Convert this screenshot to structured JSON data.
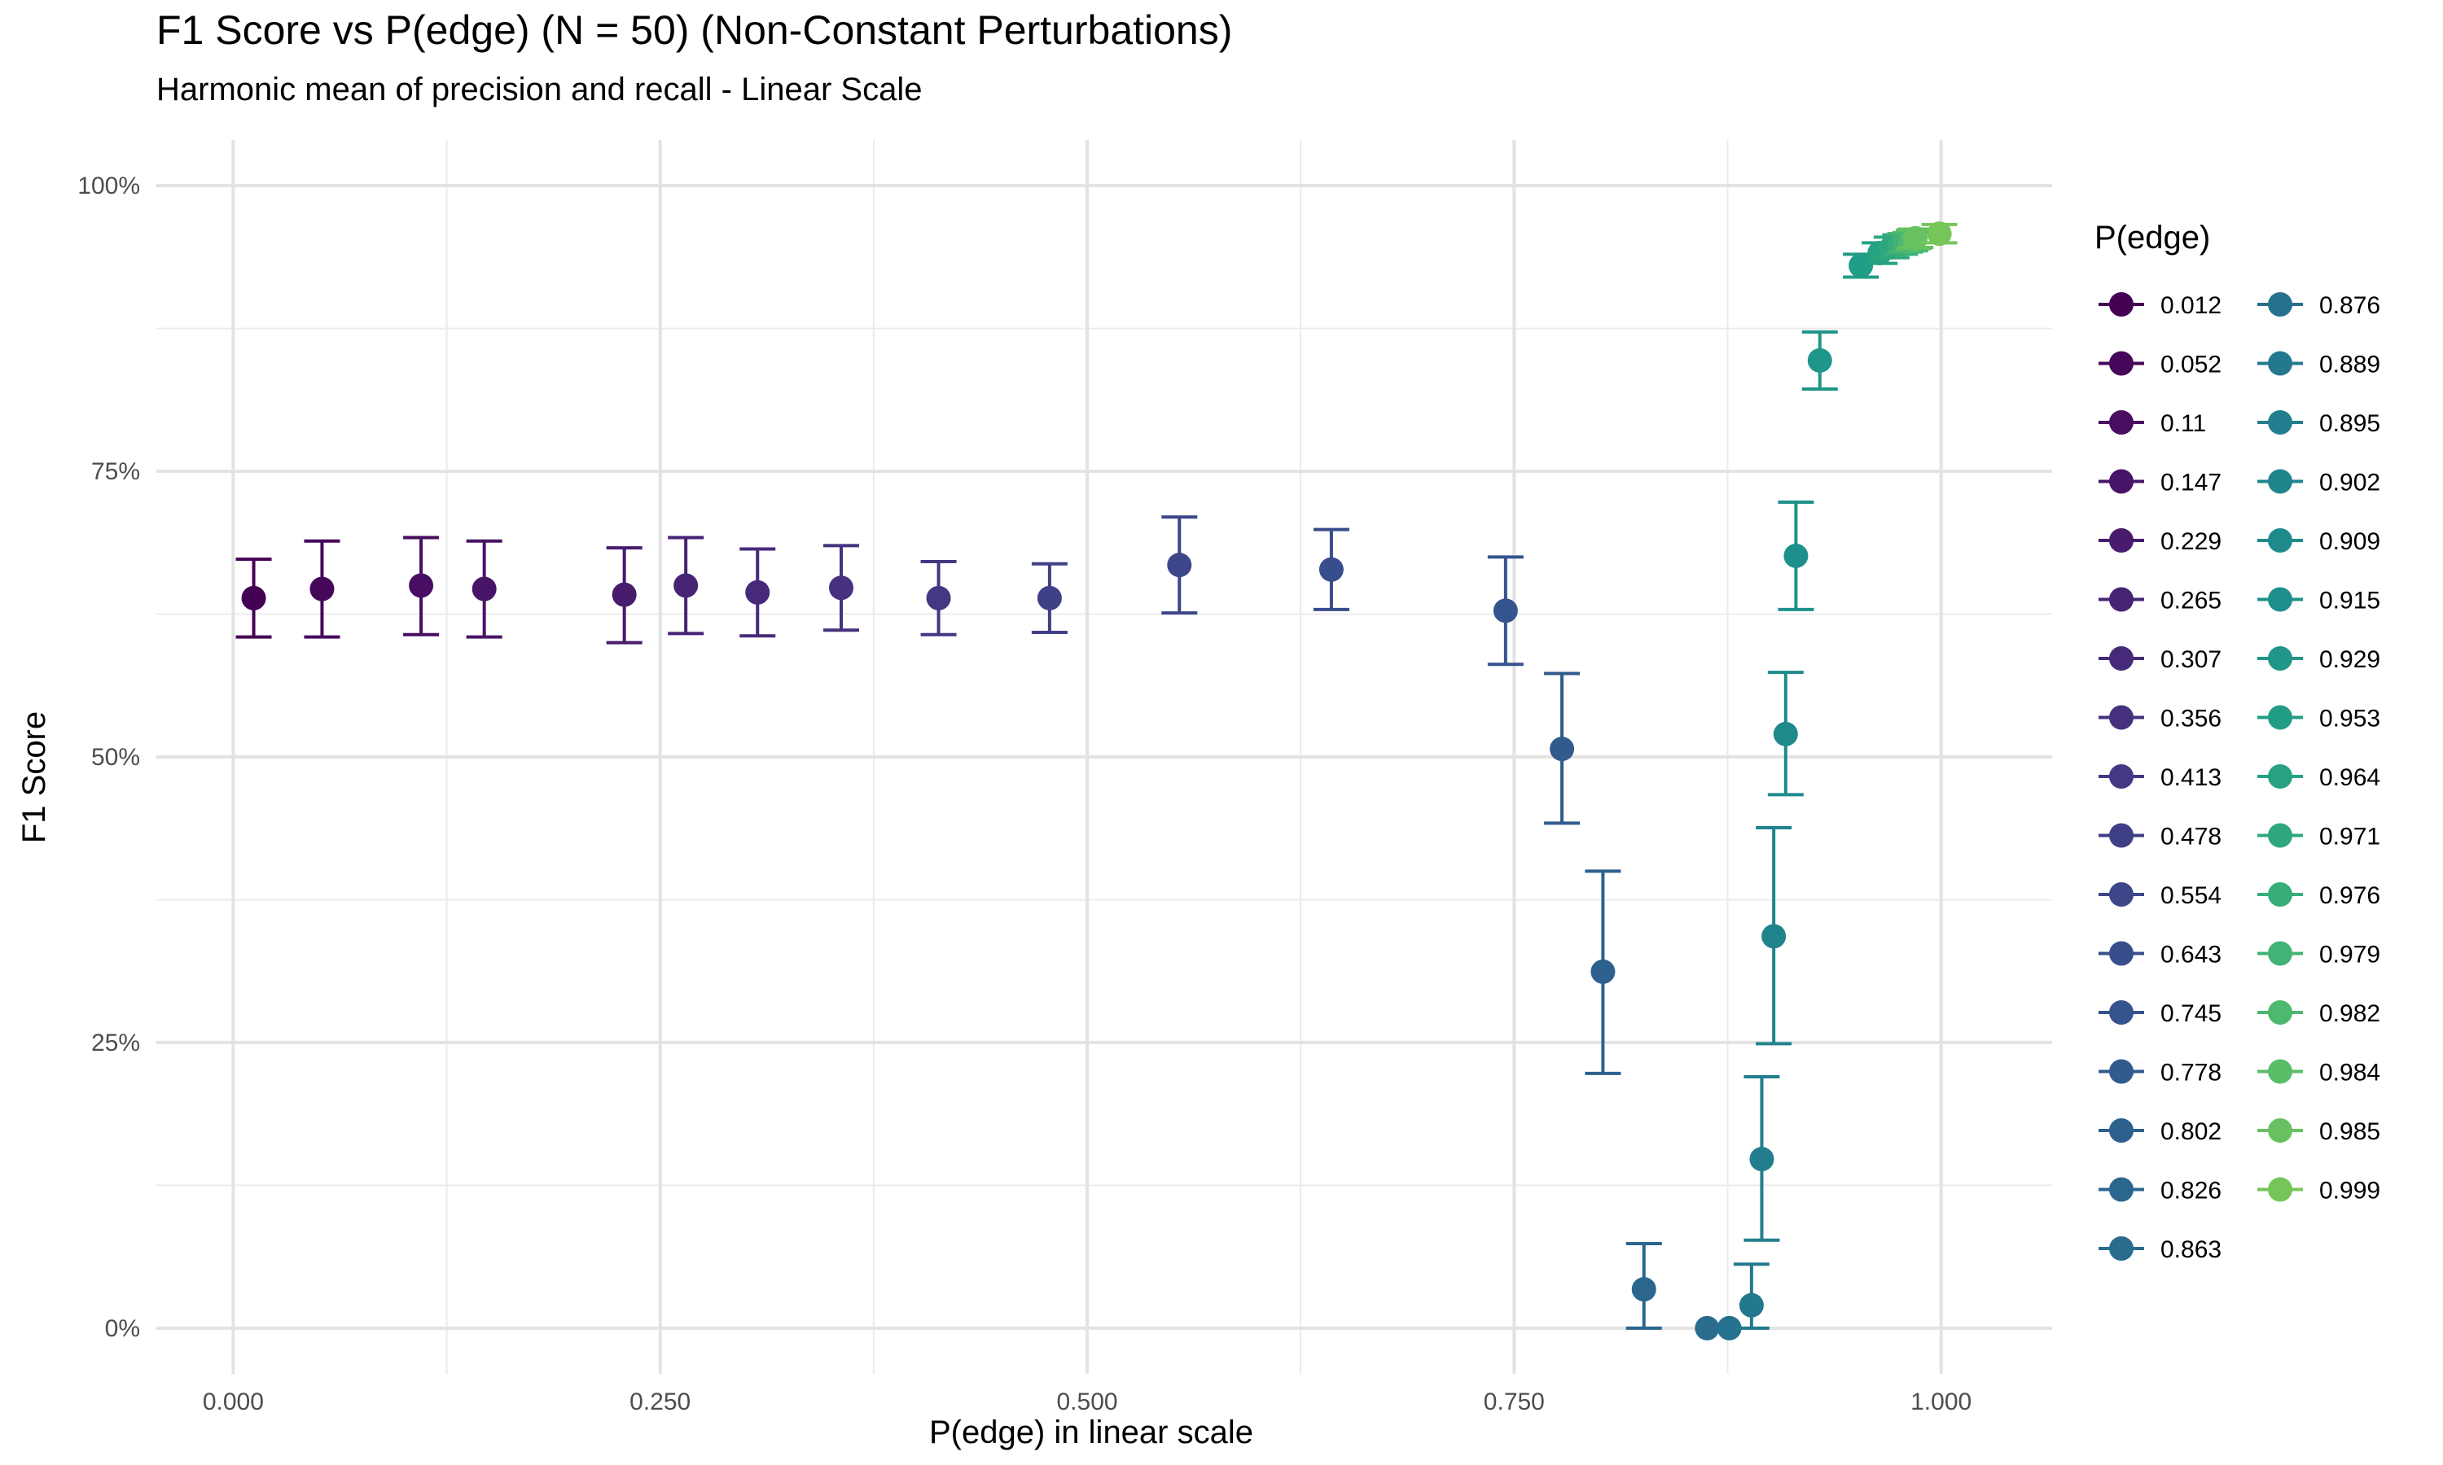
{
  "chart_data": {
    "type": "scatter",
    "title": "F1 Score vs P(edge) (N = 50) (Non-Constant Perturbations)",
    "subtitle": "Harmonic mean of precision and recall - Linear Scale",
    "xlabel": "P(edge) in linear scale",
    "ylabel": "F1 Score",
    "xlim": [
      -0.045,
      1.065
    ],
    "ylim": [
      -0.04,
      1.04
    ],
    "x_ticks": [
      0,
      0.25,
      0.5,
      0.75,
      1.0
    ],
    "x_tick_labels": [
      "0.000",
      "0.250",
      "0.500",
      "0.750",
      "1.000"
    ],
    "y_ticks": [
      0,
      0.25,
      0.5,
      0.75,
      1.0
    ],
    "y_tick_labels": [
      "0%",
      "25%",
      "50%",
      "75%",
      "100%"
    ],
    "grid": true,
    "legend_title": "P(edge)",
    "legend_position": "right",
    "error_bars": true,
    "points": [
      {
        "label": "0.012",
        "x": 0.012,
        "y": 0.639,
        "lo": 0.605,
        "hi": 0.673,
        "color": "#440154"
      },
      {
        "label": "0.052",
        "x": 0.052,
        "y": 0.647,
        "lo": 0.605,
        "hi": 0.689,
        "color": "#46075a"
      },
      {
        "label": "0.11",
        "x": 0.11,
        "y": 0.65,
        "lo": 0.607,
        "hi": 0.692,
        "color": "#470e61"
      },
      {
        "label": "0.147",
        "x": 0.147,
        "y": 0.647,
        "lo": 0.605,
        "hi": 0.689,
        "color": "#481467"
      },
      {
        "label": "0.229",
        "x": 0.229,
        "y": 0.642,
        "lo": 0.6,
        "hi": 0.683,
        "color": "#481b6d"
      },
      {
        "label": "0.265",
        "x": 0.265,
        "y": 0.65,
        "lo": 0.608,
        "hi": 0.692,
        "color": "#472374"
      },
      {
        "label": "0.307",
        "x": 0.307,
        "y": 0.644,
        "lo": 0.606,
        "hi": 0.682,
        "color": "#462a79"
      },
      {
        "label": "0.356",
        "x": 0.356,
        "y": 0.648,
        "lo": 0.611,
        "hi": 0.685,
        "color": "#45317e"
      },
      {
        "label": "0.413",
        "x": 0.413,
        "y": 0.639,
        "lo": 0.607,
        "hi": 0.671,
        "color": "#423883"
      },
      {
        "label": "0.478",
        "x": 0.478,
        "y": 0.639,
        "lo": 0.609,
        "hi": 0.669,
        "color": "#3f3f86"
      },
      {
        "label": "0.554",
        "x": 0.554,
        "y": 0.668,
        "lo": 0.626,
        "hi": 0.71,
        "color": "#3c4689"
      },
      {
        "label": "0.643",
        "x": 0.643,
        "y": 0.664,
        "lo": 0.629,
        "hi": 0.699,
        "color": "#384d8b"
      },
      {
        "label": "0.745",
        "x": 0.745,
        "y": 0.628,
        "lo": 0.581,
        "hi": 0.675,
        "color": "#35538c"
      },
      {
        "label": "0.778",
        "x": 0.778,
        "y": 0.507,
        "lo": 0.442,
        "hi": 0.573,
        "color": "#315a8d"
      },
      {
        "label": "0.802",
        "x": 0.802,
        "y": 0.312,
        "lo": 0.223,
        "hi": 0.4,
        "color": "#2e608e"
      },
      {
        "label": "0.826",
        "x": 0.826,
        "y": 0.034,
        "lo": 0.0,
        "hi": 0.074,
        "color": "#2b668e"
      },
      {
        "label": "0.863",
        "x": 0.863,
        "y": 0.0,
        "lo": 0.0,
        "hi": 0.0,
        "color": "#296c8e"
      },
      {
        "label": "0.876",
        "x": 0.876,
        "y": 0.0,
        "lo": 0.0,
        "hi": 0.0,
        "color": "#26728e"
      },
      {
        "label": "0.889",
        "x": 0.889,
        "y": 0.02,
        "lo": 0.0,
        "hi": 0.056,
        "color": "#24788e"
      },
      {
        "label": "0.895",
        "x": 0.895,
        "y": 0.148,
        "lo": 0.077,
        "hi": 0.22,
        "color": "#227e8e"
      },
      {
        "label": "0.902",
        "x": 0.902,
        "y": 0.343,
        "lo": 0.249,
        "hi": 0.438,
        "color": "#20848d"
      },
      {
        "label": "0.909",
        "x": 0.909,
        "y": 0.52,
        "lo": 0.467,
        "hi": 0.574,
        "color": "#1f8a8c"
      },
      {
        "label": "0.915",
        "x": 0.915,
        "y": 0.676,
        "lo": 0.629,
        "hi": 0.723,
        "color": "#1e908b"
      },
      {
        "label": "0.929",
        "x": 0.929,
        "y": 0.847,
        "lo": 0.822,
        "hi": 0.872,
        "color": "#1f9689"
      },
      {
        "label": "0.953",
        "x": 0.953,
        "y": 0.93,
        "lo": 0.92,
        "hi": 0.94,
        "color": "#219c86"
      },
      {
        "label": "0.964",
        "x": 0.964,
        "y": 0.941,
        "lo": 0.932,
        "hi": 0.95,
        "color": "#26a283"
      },
      {
        "label": "0.971",
        "x": 0.971,
        "y": 0.946,
        "lo": 0.937,
        "hi": 0.955,
        "color": "#2ea77f"
      },
      {
        "label": "0.976",
        "x": 0.976,
        "y": 0.948,
        "lo": 0.94,
        "hi": 0.957,
        "color": "#37ad7a"
      },
      {
        "label": "0.979",
        "x": 0.979,
        "y": 0.95,
        "lo": 0.942,
        "hi": 0.958,
        "color": "#42b275"
      },
      {
        "label": "0.982",
        "x": 0.982,
        "y": 0.951,
        "lo": 0.943,
        "hi": 0.959,
        "color": "#4db86f"
      },
      {
        "label": "0.984",
        "x": 0.984,
        "y": 0.953,
        "lo": 0.945,
        "hi": 0.961,
        "color": "#5abd68"
      },
      {
        "label": "0.985",
        "x": 0.985,
        "y": 0.954,
        "lo": 0.946,
        "hi": 0.962,
        "color": "#67c161"
      },
      {
        "label": "0.999",
        "x": 0.999,
        "y": 0.958,
        "lo": 0.95,
        "hi": 0.966,
        "color": "#75c559"
      }
    ]
  }
}
